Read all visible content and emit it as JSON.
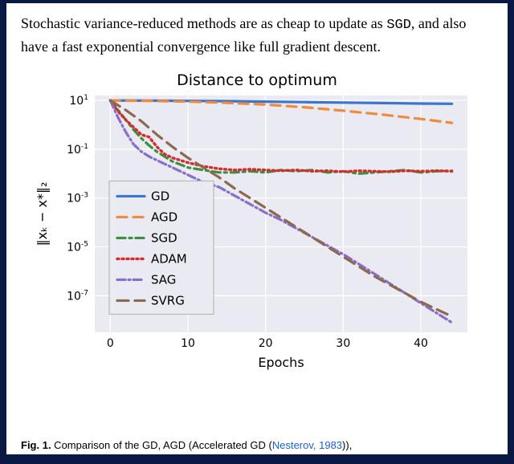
{
  "body_text_before_mono": "Stochastic variance-reduced methods are as cheap to update as ",
  "body_mono": "SGD",
  "body_text_after_mono": ", and also have a fast exponential convergence like full gradient descent.",
  "caption_prefix": "Fig. 1.",
  "caption_text": "  Comparison of the GD, AGD (Accelerated GD (",
  "caption_link_text": "Nesterov, 1983",
  "caption_tail": ")),",
  "chart": {
    "type": "line",
    "title": "Distance to optimum",
    "xlabel": "Epochs",
    "ylabel": "‖xₖ − x*‖₂",
    "xlim": [
      -2,
      46
    ],
    "ylim_log10": [
      -8.5,
      1.2
    ],
    "xticks": [
      0,
      10,
      20,
      30,
      40
    ],
    "ytick_exp": [
      -7,
      -5,
      -3,
      -1,
      1
    ],
    "background_color": "#eaeaf2",
    "grid_color": "#ffffff",
    "axis_font_size": 14,
    "label_font_size": 16,
    "title_font_size": 19,
    "legend_font_size": 15,
    "legend_border_color": "#b0b0b0",
    "series": [
      {
        "name": "GD",
        "color": "#3a76d0",
        "dash": "",
        "width": 3.2,
        "x": [
          0,
          5,
          10,
          15,
          20,
          25,
          30,
          35,
          40,
          44
        ],
        "y_log10": [
          1.0,
          0.99,
          0.98,
          0.97,
          0.95,
          0.93,
          0.91,
          0.89,
          0.87,
          0.86
        ]
      },
      {
        "name": "AGD",
        "color": "#f08a3c",
        "dash": "12 8",
        "width": 3.2,
        "x": [
          0,
          5,
          10,
          15,
          20,
          25,
          30,
          35,
          40,
          44
        ],
        "y_log10": [
          1.0,
          0.98,
          0.95,
          0.9,
          0.83,
          0.72,
          0.58,
          0.42,
          0.24,
          0.08
        ]
      },
      {
        "name": "SGD",
        "color": "#3e8e41",
        "dash": "10 5 3 5",
        "width": 3.2,
        "x": [
          0,
          1,
          2,
          3,
          4,
          5,
          6,
          7,
          8,
          10,
          12,
          14,
          16,
          18,
          20,
          22,
          24,
          26,
          28,
          30,
          32,
          34,
          36,
          38,
          40,
          42,
          44
        ],
        "y_log10": [
          1.0,
          0.6,
          0.2,
          -0.2,
          -0.55,
          -0.85,
          -1.1,
          -1.3,
          -1.5,
          -1.75,
          -1.85,
          -1.95,
          -1.95,
          -1.9,
          -1.95,
          -1.85,
          -1.9,
          -1.85,
          -1.95,
          -1.9,
          -2.0,
          -1.95,
          -1.9,
          -1.85,
          -1.95,
          -1.9,
          -1.88
        ]
      },
      {
        "name": "ADAM",
        "color": "#d62c2c",
        "dash": "2 4",
        "width": 3.4,
        "x": [
          0,
          1,
          2,
          3,
          4,
          5,
          6,
          7,
          8,
          10,
          12,
          14,
          16,
          18,
          20,
          22,
          24,
          26,
          28,
          30,
          32,
          34,
          36,
          38,
          40,
          42,
          44
        ],
        "y_log10": [
          1.0,
          0.55,
          0.2,
          -0.1,
          -0.4,
          -0.5,
          -0.9,
          -1.2,
          -1.35,
          -1.55,
          -1.7,
          -1.8,
          -1.85,
          -1.82,
          -1.85,
          -1.88,
          -1.85,
          -1.9,
          -1.88,
          -1.92,
          -1.88,
          -1.9,
          -1.92,
          -1.88,
          -1.9,
          -1.88,
          -1.9
        ]
      },
      {
        "name": "SAG",
        "color": "#8a6fc9",
        "dash": "10 4 2 4",
        "width": 3.2,
        "x": [
          0,
          1,
          2,
          3,
          4,
          5,
          6,
          7,
          8,
          10,
          12,
          14,
          16,
          18,
          20,
          22,
          24,
          26,
          28,
          30,
          32,
          34,
          36,
          38,
          40,
          42,
          44
        ],
        "y_log10": [
          1.0,
          0.3,
          -0.3,
          -0.8,
          -1.1,
          -1.3,
          -1.45,
          -1.6,
          -1.75,
          -2.05,
          -2.35,
          -2.55,
          -2.9,
          -3.25,
          -3.6,
          -3.9,
          -4.25,
          -4.6,
          -4.95,
          -5.3,
          -5.7,
          -6.1,
          -6.5,
          -6.9,
          -7.3,
          -7.7,
          -8.1
        ]
      },
      {
        "name": "SVRG",
        "color": "#8c6a4f",
        "dash": "14 8",
        "width": 3.2,
        "x": [
          0,
          2,
          4,
          6,
          8,
          10,
          12,
          14,
          16,
          18,
          20,
          22,
          24,
          26,
          28,
          30,
          32,
          34,
          36,
          38,
          40,
          42,
          44
        ],
        "y_log10": [
          1.0,
          0.6,
          0.15,
          -0.4,
          -0.9,
          -1.35,
          -1.75,
          -2.15,
          -2.6,
          -3.0,
          -3.4,
          -3.8,
          -4.2,
          -4.6,
          -5.0,
          -5.4,
          -5.8,
          -6.2,
          -6.55,
          -6.9,
          -7.25,
          -7.55,
          -7.85
        ]
      }
    ],
    "legend_order": [
      "GD",
      "AGD",
      "SGD",
      "ADAM",
      "SAG",
      "SVRG"
    ]
  }
}
